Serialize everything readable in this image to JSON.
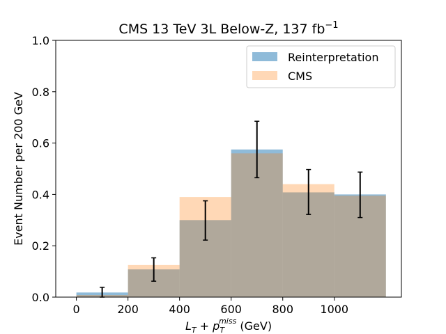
{
  "chart_data": {
    "type": "bar",
    "title": "CMS 13 TeV 3L Below-Z, 137 fb",
    "title_superscript": "−1",
    "xlabel_parts": {
      "l": "L",
      "l_sub": "T",
      "plus": " + ",
      "p": "p",
      "p_sub": "T",
      "p_sup": "miss",
      "unit": " (GeV)"
    },
    "ylabel": "Event Number per 200 GeV",
    "xlim": [
      -80,
      1260
    ],
    "ylim": [
      0.0,
      1.0
    ],
    "x_ticks": [
      0,
      200,
      400,
      600,
      800,
      1000
    ],
    "x_tick_labels": [
      "0",
      "200",
      "400",
      "600",
      "800",
      "1000"
    ],
    "y_ticks": [
      0.0,
      0.2,
      0.4,
      0.6,
      0.8,
      1.0
    ],
    "y_tick_labels": [
      "0.0",
      "0.2",
      "0.4",
      "0.6",
      "0.8",
      "1.0"
    ],
    "bin_edges": [
      0,
      200,
      400,
      600,
      800,
      1000,
      1200
    ],
    "bin_centers": [
      100,
      300,
      500,
      700,
      900,
      1100
    ],
    "legend_position": "top-right",
    "series": [
      {
        "name": "Reinterpretation",
        "color": "#1f77b4",
        "alpha": 0.5,
        "values": [
          0.018,
          0.108,
          0.3,
          0.575,
          0.408,
          0.4
        ]
      },
      {
        "name": "CMS",
        "color": "#ff7f0e",
        "alpha": 0.3,
        "values": [
          0.008,
          0.125,
          0.39,
          0.56,
          0.44,
          0.395
        ]
      }
    ],
    "error_bars": {
      "x": [
        100,
        300,
        500,
        700,
        900,
        1100
      ],
      "lower": [
        0.0,
        0.062,
        0.222,
        0.465,
        0.322,
        0.31
      ],
      "upper": [
        0.038,
        0.153,
        0.375,
        0.685,
        0.497,
        0.487
      ],
      "color": "#000000"
    }
  }
}
